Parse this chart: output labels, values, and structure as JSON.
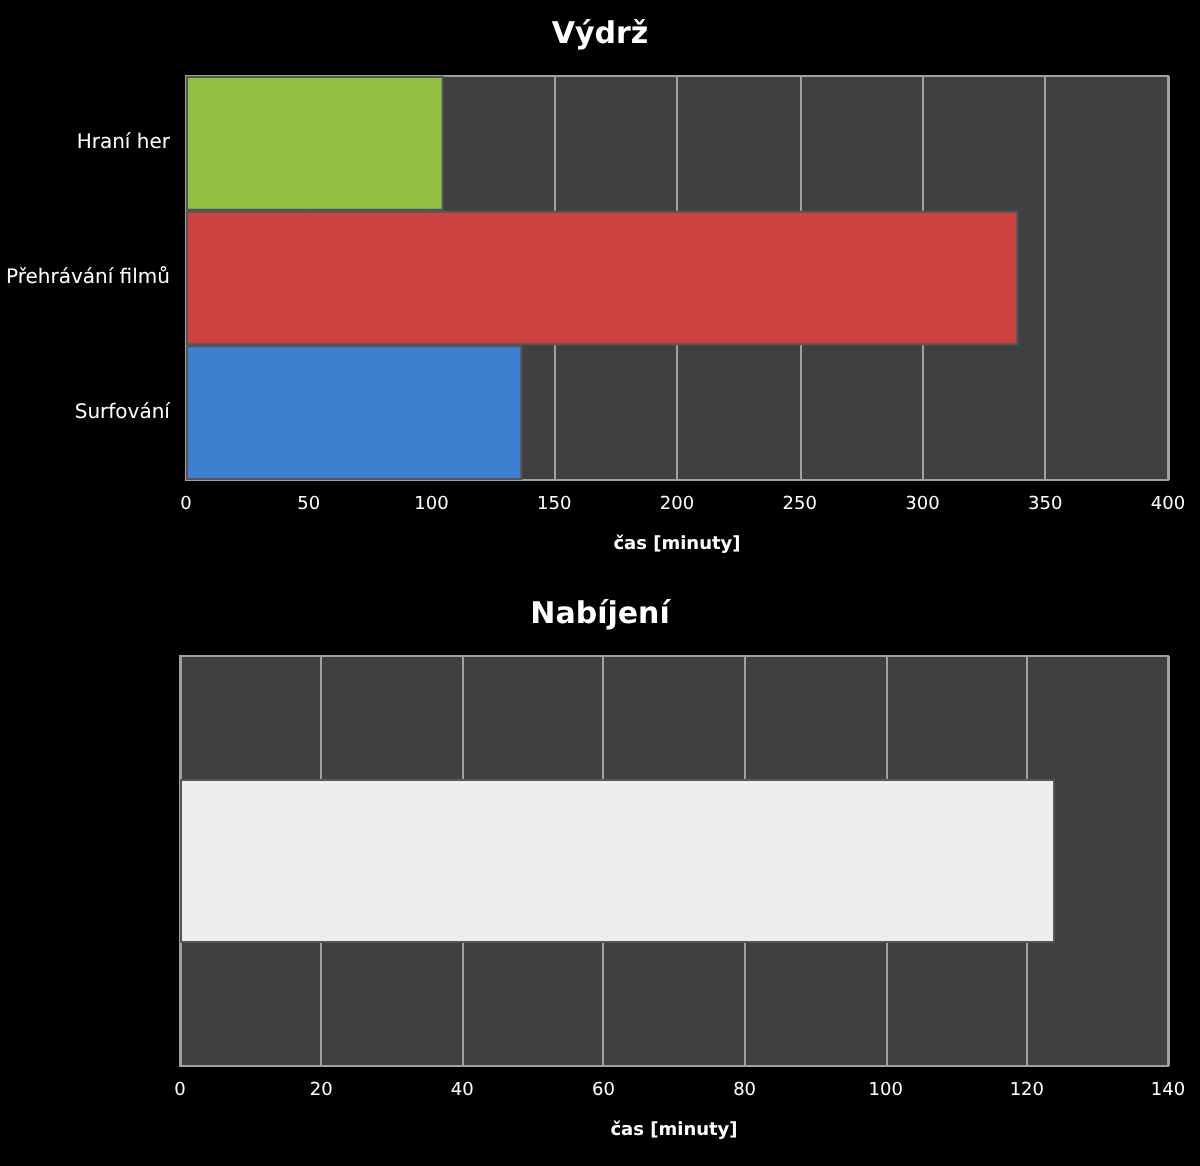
{
  "chart_data": [
    {
      "type": "bar",
      "title": "Výdrž",
      "orientation": "horizontal",
      "categories": [
        "Hraní her",
        "Přehrávání filmů",
        "Surfování"
      ],
      "values": [
        105,
        339,
        137
      ],
      "colors": [
        "#92c045",
        "#cc4241",
        "#3f7fcf"
      ],
      "xlim": [
        0,
        400
      ],
      "xticks": [
        0,
        50,
        100,
        150,
        200,
        250,
        300,
        350,
        400
      ],
      "xlabel": "čas [minuty]",
      "grid": "x"
    },
    {
      "type": "bar",
      "title": "Nabíjení",
      "orientation": "horizontal",
      "categories": [
        null
      ],
      "values": [
        124
      ],
      "colors": [
        "#eeeeee"
      ],
      "xlim": [
        0,
        140
      ],
      "xticks": [
        0,
        20,
        40,
        60,
        80,
        100,
        120,
        140
      ],
      "xlabel": "čas [minuty]",
      "grid": "x"
    }
  ]
}
